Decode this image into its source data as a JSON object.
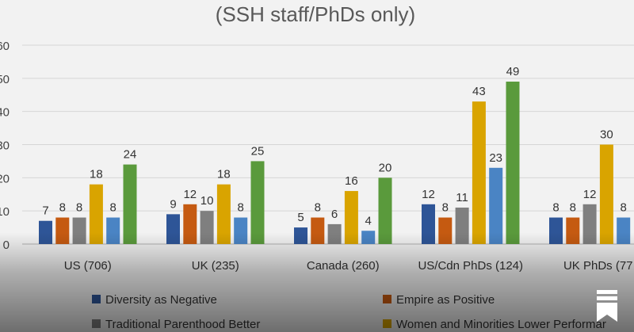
{
  "chart_data": {
    "type": "bar",
    "title": "(SSH staff/PhDs only)",
    "xlabel": "",
    "ylabel": "",
    "ylim": [
      0,
      60
    ],
    "yticks": [
      0,
      10,
      20,
      30,
      40,
      50,
      60
    ],
    "ytick_labels": [
      "0",
      "10",
      "20",
      "30",
      "40",
      "50",
      "60"
    ],
    "grid": true,
    "legend_position": "bottom",
    "categories": [
      "US (706)",
      "UK (235)",
      "Canada (260)",
      "US/Cdn PhDs (124)",
      "UK PhDs (77"
    ],
    "series": [
      {
        "name": "Diversity as Negative",
        "color": "#2e5597",
        "values": [
          7,
          9,
          5,
          12,
          8
        ]
      },
      {
        "name": "Empire as Positive",
        "color": "#c55a11",
        "values": [
          8,
          12,
          8,
          8,
          8
        ]
      },
      {
        "name": "Traditional Parenthood Better",
        "color": "#7f7f7f",
        "values": [
          8,
          10,
          6,
          11,
          12
        ]
      },
      {
        "name": "Women and Minorities Lower Performar",
        "color": "#d9a400",
        "values": [
          18,
          18,
          16,
          43,
          30
        ]
      },
      {
        "name": "",
        "color": "#4a84c4",
        "values": [
          8,
          8,
          4,
          23,
          8
        ]
      },
      {
        "name": "",
        "color": "#5a9a3c",
        "values": [
          24,
          25,
          20,
          49,
          null
        ]
      }
    ]
  },
  "icons": {
    "bookmark": "bookmark-icon"
  }
}
